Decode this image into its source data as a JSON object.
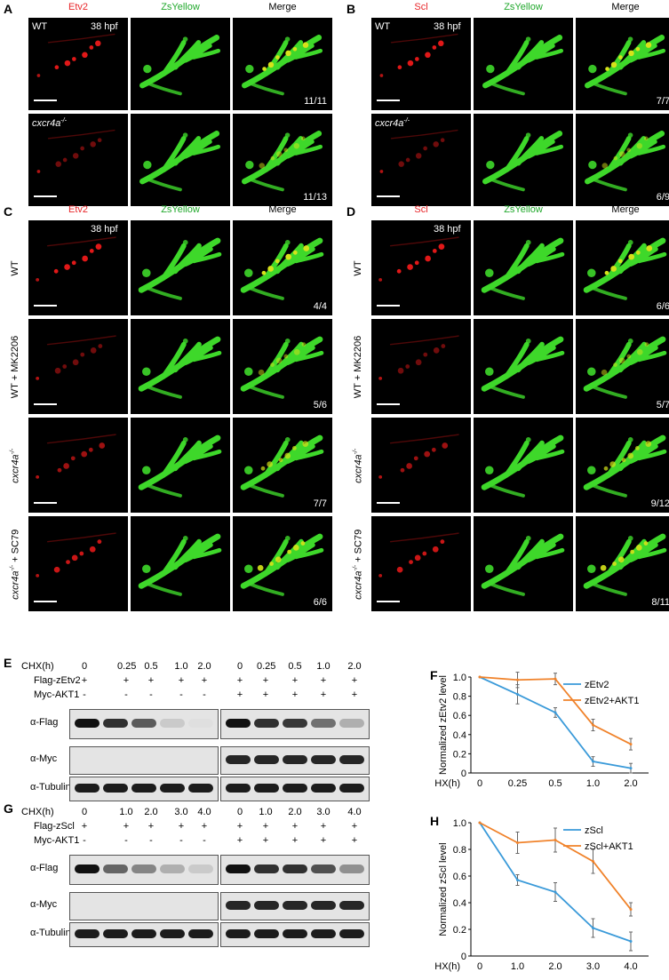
{
  "panels": {
    "A": {
      "label": "A",
      "headers": [
        "Etv2",
        "ZsYellow",
        "Merge"
      ],
      "colors": [
        "#e8262a",
        "#21a82c",
        "#000000"
      ],
      "stage": "38 hpf",
      "rows": [
        {
          "label": "WT",
          "count": "11/11"
        },
        {
          "label": "cxcr4a-/-",
          "count": "11/13"
        }
      ]
    },
    "B": {
      "label": "B",
      "headers": [
        "Scl",
        "ZsYellow",
        "Merge"
      ],
      "colors": [
        "#e8262a",
        "#21a82c",
        "#000000"
      ],
      "stage": "38 hpf",
      "rows": [
        {
          "label": "WT",
          "count": "7/7"
        },
        {
          "label": "cxcr4a-/-",
          "count": "6/9"
        }
      ]
    },
    "C": {
      "label": "C",
      "headers": [
        "Etv2",
        "ZsYellow",
        "Merge"
      ],
      "colors": [
        "#e8262a",
        "#21a82c",
        "#000000"
      ],
      "stage": "38 hpf",
      "rows": [
        {
          "label": "WT",
          "count": "4/4"
        },
        {
          "label": "WT + MK2206",
          "count": "5/6"
        },
        {
          "label": "cxcr4a-/-",
          "count": "7/7"
        },
        {
          "label": "cxcr4a-/- + SC79",
          "count": "6/6"
        }
      ]
    },
    "D": {
      "label": "D",
      "headers": [
        "Scl",
        "ZsYellow",
        "Merge"
      ],
      "colors": [
        "#e8262a",
        "#21a82c",
        "#000000"
      ],
      "stage": "38 hpf",
      "rows": [
        {
          "label": "WT",
          "count": "6/6"
        },
        {
          "label": "WT + MK2206",
          "count": "5/7"
        },
        {
          "label": "cxcr4a-/-",
          "count": "9/12"
        },
        {
          "label": "cxcr4a-/- + SC79",
          "count": "8/11"
        }
      ]
    },
    "E": {
      "label": "E",
      "chx_label": "CHX(h)",
      "chx": [
        "0",
        "0.25",
        "0.5",
        "1.0",
        "2.0",
        "0",
        "0.25",
        "0.5",
        "1.0",
        "2.0"
      ],
      "flag_label": "Flag-zEtv2",
      "myc_label": "Myc-AKT1",
      "flag": [
        "+",
        "+",
        "+",
        "+",
        "+",
        "+",
        "+",
        "+",
        "+",
        "+"
      ],
      "myc": [
        "-",
        "-",
        "-",
        "-",
        "-",
        "+",
        "+",
        "+",
        "+",
        "+"
      ],
      "blots": [
        "α-Flag",
        "α-Myc",
        "α-Tubulin"
      ],
      "flag_intensity": [
        1.0,
        0.85,
        0.65,
        0.12,
        0.02,
        1.0,
        0.85,
        0.82,
        0.55,
        0.25
      ]
    },
    "G": {
      "label": "G",
      "chx_label": "CHX(h)",
      "chx": [
        "0",
        "1.0",
        "2.0",
        "3.0",
        "4.0",
        "0",
        "1.0",
        "2.0",
        "3.0",
        "4.0"
      ],
      "flag_label": "Flag-zScl",
      "myc_label": "Myc-AKT1",
      "flag": [
        "+",
        "+",
        "+",
        "+",
        "+",
        "+",
        "+",
        "+",
        "+",
        "+"
      ],
      "myc": [
        "-",
        "-",
        "-",
        "-",
        "-",
        "+",
        "+",
        "+",
        "+",
        "+"
      ],
      "blots": [
        "α-Flag",
        "α-Myc",
        "α-Tubulin"
      ],
      "flag_intensity": [
        1.0,
        0.6,
        0.45,
        0.25,
        0.12,
        1.0,
        0.85,
        0.85,
        0.7,
        0.4
      ]
    }
  },
  "chart_data": [
    {
      "panel": "F",
      "type": "line",
      "ylabel": "Normalized zEtv2 level",
      "xlabel": "CHX(h)",
      "categories": [
        "0",
        "0.25",
        "0.5",
        "1.0",
        "2.0"
      ],
      "ylim": [
        0,
        1.0
      ],
      "yticks": [
        "0",
        "0.2",
        "0.4",
        "0.6",
        "0.8",
        "1.0"
      ],
      "legend": "top-right",
      "series": [
        {
          "name": "zEtv2",
          "color": "#3a9ad9",
          "values": [
            1.0,
            0.82,
            0.63,
            0.12,
            0.05
          ],
          "err": [
            0,
            0.1,
            0.05,
            0.05,
            0.05
          ]
        },
        {
          "name": "zEtv2+AKT1",
          "color": "#f0822a",
          "values": [
            1.0,
            0.97,
            0.98,
            0.5,
            0.3
          ],
          "err": [
            0,
            0.08,
            0.06,
            0.06,
            0.06
          ]
        }
      ]
    },
    {
      "panel": "H",
      "type": "line",
      "ylabel": "Normalized zScl level",
      "xlabel": "CHX(h)",
      "categories": [
        "0",
        "1.0",
        "2.0",
        "3.0",
        "4.0"
      ],
      "ylim": [
        0,
        1.0
      ],
      "yticks": [
        "0",
        "0.2",
        "0.4",
        "0.6",
        "0.8",
        "1.0"
      ],
      "legend": "top-right",
      "series": [
        {
          "name": "zScl",
          "color": "#3a9ad9",
          "values": [
            1.0,
            0.57,
            0.48,
            0.21,
            0.11
          ],
          "err": [
            0,
            0.04,
            0.07,
            0.07,
            0.07
          ]
        },
        {
          "name": "zScl+AKT1",
          "color": "#f0822a",
          "values": [
            1.0,
            0.85,
            0.87,
            0.71,
            0.35
          ],
          "err": [
            0,
            0.08,
            0.09,
            0.09,
            0.05
          ]
        }
      ]
    }
  ]
}
